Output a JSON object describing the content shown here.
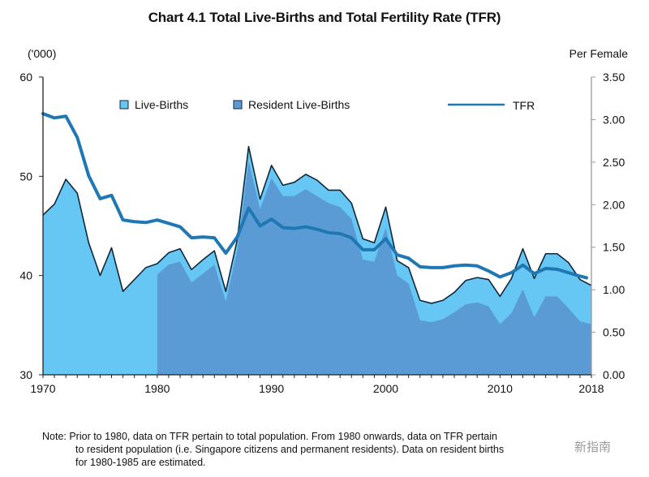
{
  "chart_data": {
    "type": "area",
    "title": "Chart 4.1  Total Live-Births and Total Fertility Rate (TFR)",
    "ylabel_left": "('000)",
    "ylabel_right": "Per Female",
    "xlabel": "",
    "xlim": [
      1970,
      2018
    ],
    "ylim_left": [
      30,
      60
    ],
    "ylim_right": [
      0,
      3.5
    ],
    "x_tick_labels": [
      "1970",
      "1980",
      "1990",
      "2000",
      "2010",
      "2018"
    ],
    "x_tick_values": [
      1970,
      1980,
      1990,
      2000,
      2010,
      2018
    ],
    "y_left_tick_labels": [
      "30",
      "40",
      "50",
      "60"
    ],
    "y_left_tick_values": [
      30,
      40,
      50,
      60
    ],
    "y_right_tick_labels": [
      "0.00",
      "0.50",
      "1.00",
      "1.50",
      "2.00",
      "2.50",
      "3.00",
      "3.50"
    ],
    "y_right_tick_values": [
      0,
      0.5,
      1.0,
      1.5,
      2.0,
      2.5,
      3.0,
      3.5
    ],
    "grid": false,
    "legend_position": "top",
    "x": [
      1970,
      1971,
      1972,
      1973,
      1974,
      1975,
      1976,
      1977,
      1978,
      1979,
      1980,
      1981,
      1982,
      1983,
      1984,
      1985,
      1986,
      1987,
      1988,
      1989,
      1990,
      1991,
      1992,
      1993,
      1994,
      1995,
      1996,
      1997,
      1998,
      1999,
      2000,
      2001,
      2002,
      2003,
      2004,
      2005,
      2006,
      2007,
      2008,
      2009,
      2010,
      2011,
      2012,
      2013,
      2014,
      2015,
      2016,
      2017,
      2018
    ],
    "series": [
      {
        "name": "Live-Births",
        "axis": "left",
        "kind": "area",
        "color": "#66c6f4",
        "x_start": 1970,
        "values": [
          46.1,
          47.2,
          49.7,
          48.3,
          43.3,
          40.0,
          42.8,
          38.4,
          39.6,
          40.8,
          41.2,
          42.3,
          42.7,
          40.6,
          41.6,
          42.5,
          38.4,
          43.6,
          53.0,
          47.7,
          51.1,
          49.1,
          49.4,
          50.2,
          49.6,
          48.6,
          48.6,
          47.3,
          43.7,
          43.3,
          46.9,
          41.5,
          40.8,
          37.5,
          37.2,
          37.5,
          38.3,
          39.5,
          39.8,
          39.6,
          37.9,
          39.7,
          42.7,
          39.7,
          42.2,
          42.2,
          41.3,
          39.6,
          39.0
        ]
      },
      {
        "name": "Resident Live-Births",
        "axis": "left",
        "kind": "area",
        "color": "#5b9bd5",
        "x_start": 1980,
        "values": [
          40.1,
          41.1,
          41.4,
          39.3,
          40.2,
          41.1,
          37.4,
          42.5,
          51.5,
          46.7,
          49.8,
          48.0,
          48.0,
          48.7,
          48.0,
          47.3,
          46.9,
          45.7,
          41.6,
          41.4,
          44.8,
          40.0,
          39.2,
          35.5,
          35.3,
          35.6,
          36.3,
          37.1,
          37.3,
          36.9,
          35.1,
          36.2,
          38.6,
          35.8,
          37.9,
          37.9,
          36.7,
          35.4,
          35.1
        ]
      },
      {
        "name": "TFR",
        "axis": "right",
        "kind": "line",
        "color": "#1f78b4",
        "x_start": 1970,
        "values": [
          3.07,
          3.02,
          3.04,
          2.79,
          2.34,
          2.07,
          2.11,
          1.82,
          1.8,
          1.79,
          1.82,
          1.78,
          1.74,
          1.61,
          1.62,
          1.61,
          1.43,
          1.62,
          1.96,
          1.75,
          1.83,
          1.73,
          1.72,
          1.74,
          1.71,
          1.67,
          1.66,
          1.61,
          1.47,
          1.47,
          1.6,
          1.41,
          1.37,
          1.27,
          1.26,
          1.26,
          1.28,
          1.29,
          1.28,
          1.22,
          1.15,
          1.2,
          1.29,
          1.19,
          1.25,
          1.24,
          1.2,
          1.16,
          1.14
        ]
      }
    ],
    "legend": [
      {
        "label": "Live-Births",
        "swatch": "box",
        "color": "#66c6f4"
      },
      {
        "label": "Resident Live-Births",
        "swatch": "box",
        "color": "#5b9bd5"
      },
      {
        "label": "TFR",
        "swatch": "line",
        "color": "#1f78b4"
      }
    ]
  },
  "note": {
    "line1": "Note: Prior to 1980, data on TFR pertain to total population. From 1980 onwards, data on TFR pertain",
    "line2": "to resident population (i.e. Singapore citizens and permanent residents). Data on resident births",
    "line3": "for 1980-1985 are estimated."
  },
  "watermark": "新指南"
}
